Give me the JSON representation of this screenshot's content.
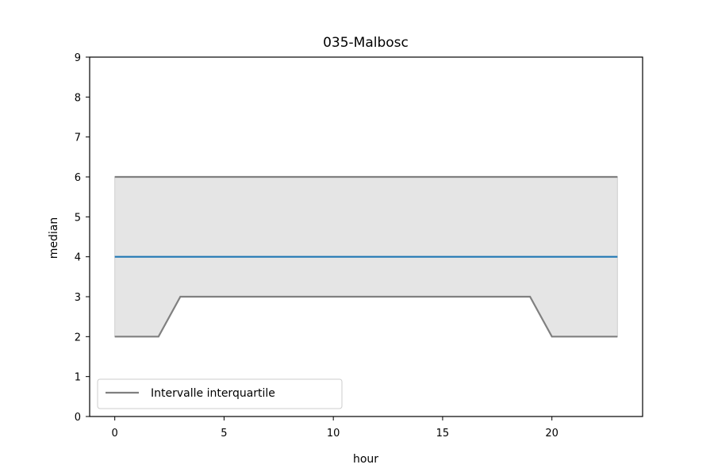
{
  "chart_data": {
    "type": "line",
    "title": "035-Malbosc",
    "xlabel": "hour",
    "ylabel": "median",
    "xlim": [
      -1.15,
      24.15
    ],
    "ylim": [
      0,
      9
    ],
    "xticks": [
      0,
      5,
      10,
      15,
      20
    ],
    "yticks": [
      0,
      1,
      2,
      3,
      4,
      5,
      6,
      7,
      8,
      9
    ],
    "grid": false,
    "legend": {
      "placement": "lower-left",
      "entries": [
        "Intervalle interquartile"
      ]
    },
    "x": [
      0,
      1,
      2,
      3,
      4,
      5,
      6,
      7,
      8,
      9,
      10,
      11,
      12,
      13,
      14,
      15,
      16,
      17,
      18,
      19,
      20,
      21,
      22,
      23
    ],
    "series": [
      {
        "role": "median",
        "color": "#1f77b4",
        "values": [
          4,
          4,
          4,
          4,
          4,
          4,
          4,
          4,
          4,
          4,
          4,
          4,
          4,
          4,
          4,
          4,
          4,
          4,
          4,
          4,
          4,
          4,
          4,
          4
        ]
      },
      {
        "role": "q1",
        "name": "Intervalle interquartile",
        "color": "#808080",
        "values": [
          2,
          2,
          2,
          3,
          3,
          3,
          3,
          3,
          3,
          3,
          3,
          3,
          3,
          3,
          3,
          3,
          3,
          3,
          3,
          3,
          2,
          2,
          2,
          2
        ]
      },
      {
        "role": "q3",
        "color": "#808080",
        "values": [
          6,
          6,
          6,
          6,
          6,
          6,
          6,
          6,
          6,
          6,
          6,
          6,
          6,
          6,
          6,
          6,
          6,
          6,
          6,
          6,
          6,
          6,
          6,
          6
        ]
      }
    ],
    "band_color": "#e5e5e5"
  }
}
